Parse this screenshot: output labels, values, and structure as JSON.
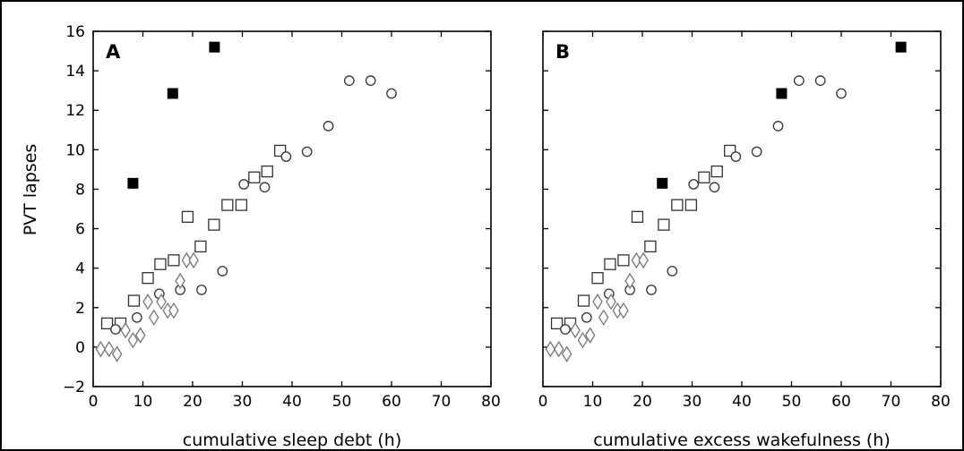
{
  "figure": {
    "ylabel": "PVT lapses"
  },
  "chart_data": [
    {
      "type": "scatter",
      "panel": "A",
      "xlabel": "cumulative sleep debt (h)",
      "ylabel": "PVT lapses",
      "xlim": [
        0,
        80
      ],
      "ylim": [
        -2,
        16
      ],
      "xticks": [
        "0",
        "10",
        "20",
        "30",
        "40",
        "50",
        "60",
        "70",
        "80"
      ],
      "yticks": [
        "−2",
        "0",
        "2",
        "4",
        "6",
        "8",
        "10",
        "12",
        "14",
        "16"
      ],
      "grid": false,
      "series": [
        {
          "marker": "filled-square",
          "color": "#000000",
          "x": [
            8.0,
            16.0,
            24.4
          ],
          "y": [
            8.3,
            12.85,
            15.2
          ]
        },
        {
          "marker": "open-square",
          "color": "#333333",
          "x": [
            2.8,
            5.5,
            8.2,
            11.0,
            13.5,
            16.2,
            19.0,
            21.6,
            24.3,
            27.0,
            29.8,
            32.4,
            35.0,
            37.6
          ],
          "y": [
            1.2,
            1.2,
            2.35,
            3.5,
            4.2,
            4.4,
            6.6,
            5.1,
            6.2,
            7.2,
            7.2,
            8.6,
            8.9,
            9.95
          ]
        },
        {
          "marker": "open-circle",
          "color": "#333333",
          "x": [
            4.5,
            8.8,
            13.3,
            17.5,
            21.8,
            26.0,
            30.3,
            34.5,
            38.8,
            43.0,
            47.3,
            51.5,
            55.8,
            60.0
          ],
          "y": [
            0.9,
            1.5,
            2.7,
            2.9,
            2.9,
            3.85,
            8.25,
            8.1,
            9.65,
            9.9,
            11.2,
            13.5,
            13.5,
            12.85
          ]
        },
        {
          "marker": "open-diamond",
          "color": "#777777",
          "x": [
            1.5,
            3.2,
            4.8,
            6.5,
            8.0,
            9.5,
            11.0,
            12.2,
            13.7,
            15.0,
            16.2,
            17.5,
            18.8,
            20.2
          ],
          "y": [
            -0.1,
            -0.1,
            -0.35,
            0.85,
            0.35,
            0.6,
            2.3,
            1.5,
            2.3,
            1.85,
            1.85,
            3.35,
            4.4,
            4.4
          ]
        }
      ]
    },
    {
      "type": "scatter",
      "panel": "B",
      "xlabel": "cumulative excess wakefulness (h)",
      "ylabel": "PVT lapses",
      "xlim": [
        0,
        80
      ],
      "ylim": [
        -2,
        16
      ],
      "xticks": [
        "0",
        "10",
        "20",
        "30",
        "40",
        "50",
        "60",
        "70",
        "80"
      ],
      "yticks": [
        "−2",
        "0",
        "2",
        "4",
        "6",
        "8",
        "10",
        "12",
        "14",
        "16"
      ],
      "grid": false,
      "series": [
        {
          "marker": "filled-square",
          "color": "#000000",
          "x": [
            24.0,
            48.0,
            72.0
          ],
          "y": [
            8.3,
            12.85,
            15.2
          ]
        },
        {
          "marker": "open-square",
          "color": "#333333",
          "x": [
            2.8,
            5.5,
            8.2,
            11.0,
            13.5,
            16.2,
            19.0,
            21.6,
            24.3,
            27.0,
            29.8,
            32.4,
            35.0,
            37.6
          ],
          "y": [
            1.2,
            1.2,
            2.35,
            3.5,
            4.2,
            4.4,
            6.6,
            5.1,
            6.2,
            7.2,
            7.2,
            8.6,
            8.9,
            9.95
          ]
        },
        {
          "marker": "open-circle",
          "color": "#333333",
          "x": [
            4.5,
            8.8,
            13.3,
            17.5,
            21.8,
            26.0,
            30.3,
            34.5,
            38.8,
            43.0,
            47.3,
            51.5,
            55.8,
            60.0
          ],
          "y": [
            0.9,
            1.5,
            2.7,
            2.9,
            2.9,
            3.85,
            8.25,
            8.1,
            9.65,
            9.9,
            11.2,
            13.5,
            13.5,
            12.85
          ]
        },
        {
          "marker": "open-diamond",
          "color": "#777777",
          "x": [
            1.5,
            3.2,
            4.8,
            6.5,
            8.0,
            9.5,
            11.0,
            12.2,
            13.7,
            15.0,
            16.2,
            17.5,
            18.8,
            20.2
          ],
          "y": [
            -0.1,
            -0.1,
            -0.35,
            0.85,
            0.35,
            0.6,
            2.3,
            1.5,
            2.3,
            1.85,
            1.85,
            3.35,
            4.4,
            4.4
          ]
        }
      ]
    }
  ]
}
